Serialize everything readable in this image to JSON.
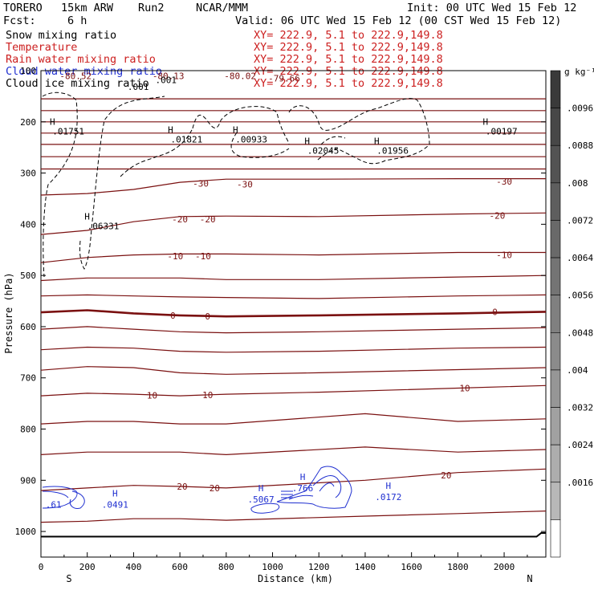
{
  "header": {
    "model": "TORERO",
    "resolution": "15km ARW",
    "run": "Run2",
    "org": "NCAR/MMM",
    "init": "Init: 00 UTC Wed 15 Feb 12",
    "fcst_label": "Fcst:",
    "fcst_value": "6 h",
    "valid": "Valid: 06 UTC Wed 15 Feb 12 (00 CST Wed 15 Feb 12)"
  },
  "colors": {
    "snow": "#000000",
    "temperature": "#7a1010",
    "rain": "#cc1f1f",
    "cloud_water": "#1f2fd0",
    "cloud_ice": "#000000",
    "xy_text": "#cc1f1f"
  },
  "legend": [
    {
      "name": "Snow mixing ratio",
      "xy": "XY= 222.9,  5.1 to 222.9,149.8",
      "color": "#000000"
    },
    {
      "name": "Temperature",
      "xy": "XY= 222.9,  5.1 to 222.9,149.8",
      "color": "#cc1f1f"
    },
    {
      "name": "Rain water mixing ratio",
      "xy": "XY= 222.9,  5.1 to 222.9,149.8",
      "color": "#cc1f1f"
    },
    {
      "name": "Cloud water mixing ratio",
      "xy": "XY= 222.9,  5.1 to 222.9,149.8",
      "color": "#1f2fd0"
    },
    {
      "name": "Cloud ice mixing ratio",
      "xy": "XY= 222.9,  5.1 to 222.9,149.8",
      "color": "#000000"
    }
  ],
  "chart_data": {
    "type": "line",
    "xlabel": "Distance (km)",
    "ylabel": "Pressure (hPa)",
    "xlim": [
      0,
      2180
    ],
    "ylim": [
      1050,
      100
    ],
    "x_ticks": [
      0,
      200,
      400,
      600,
      800,
      1000,
      1200,
      1400,
      1600,
      1800,
      2000
    ],
    "y_ticks": [
      200,
      300,
      400,
      500,
      600,
      700,
      800,
      900,
      1000
    ],
    "south_label": "S",
    "north_label": "N",
    "colorbar_unit": "g kg⁻¹",
    "colorbar_labels": [
      ".0096",
      ".0088",
      ".008",
      ".0072",
      ".0064",
      ".0056",
      ".0048",
      ".004",
      ".0032",
      ".0024",
      ".0016"
    ],
    "temperature_isotherms": [
      {
        "label": "",
        "p": [
          155,
          155,
          155,
          155,
          155,
          155,
          155
        ],
        "x": [
          0,
          400,
          800,
          1200,
          1600,
          2000,
          2180
        ]
      },
      {
        "label": "",
        "p": [
          178,
          178,
          178,
          178,
          178,
          178,
          178
        ],
        "x": [
          0,
          400,
          800,
          1200,
          1600,
          2000,
          2180
        ]
      },
      {
        "label": "",
        "p": [
          200,
          200,
          200,
          200,
          200,
          200,
          200
        ],
        "x": [
          0,
          400,
          800,
          1200,
          1600,
          2000,
          2180
        ]
      },
      {
        "label": "",
        "p": [
          222,
          222,
          222,
          222,
          222,
          222,
          222
        ],
        "x": [
          0,
          400,
          800,
          1200,
          1600,
          2000,
          2180
        ]
      },
      {
        "label": "",
        "p": [
          244,
          244,
          244,
          244,
          244,
          244,
          244
        ],
        "x": [
          0,
          400,
          800,
          1200,
          1600,
          2000,
          2180
        ]
      },
      {
        "label": "",
        "p": [
          268,
          268,
          268,
          268,
          268,
          268,
          268
        ],
        "x": [
          0,
          400,
          800,
          1200,
          1600,
          2000,
          2180
        ]
      },
      {
        "label": "",
        "p": [
          292,
          292,
          292,
          292,
          292,
          292,
          292
        ],
        "x": [
          0,
          400,
          800,
          1200,
          1600,
          2000,
          2180
        ]
      },
      {
        "label": "-30",
        "p": [
          343,
          340,
          332,
          318,
          312,
          312,
          311,
          311
        ],
        "x": [
          0,
          200,
          400,
          600,
          800,
          1200,
          1800,
          2180
        ]
      },
      {
        "label": "-20",
        "p": [
          420,
          412,
          395,
          385,
          384,
          385,
          380,
          378
        ],
        "x": [
          0,
          200,
          400,
          600,
          800,
          1200,
          1800,
          2180
        ]
      },
      {
        "label": "-10",
        "p": [
          475,
          465,
          460,
          458,
          458,
          460,
          455,
          455
        ],
        "x": [
          0,
          200,
          400,
          600,
          800,
          1200,
          1800,
          2180
        ]
      },
      {
        "label": "",
        "p": [
          510,
          505,
          505,
          505,
          508,
          508,
          503,
          500
        ],
        "x": [
          0,
          200,
          400,
          600,
          800,
          1200,
          1800,
          2180
        ]
      },
      {
        "label": "",
        "p": [
          540,
          538,
          540,
          542,
          543,
          545,
          540,
          538
        ],
        "x": [
          0,
          200,
          400,
          600,
          800,
          1200,
          1800,
          2180
        ]
      },
      {
        "label": "0",
        "p": [
          572,
          568,
          574,
          578,
          580,
          578,
          574,
          571
        ],
        "x": [
          0,
          200,
          400,
          600,
          800,
          1200,
          1800,
          2180
        ]
      },
      {
        "label": "",
        "p": [
          605,
          600,
          605,
          610,
          612,
          610,
          605,
          602
        ],
        "x": [
          0,
          200,
          400,
          600,
          800,
          1200,
          1800,
          2180
        ]
      },
      {
        "label": "",
        "p": [
          645,
          640,
          642,
          648,
          650,
          648,
          642,
          640
        ],
        "x": [
          0,
          200,
          400,
          600,
          800,
          1200,
          1800,
          2180
        ]
      },
      {
        "label": "",
        "p": [
          685,
          678,
          680,
          690,
          693,
          690,
          684,
          680
        ],
        "x": [
          0,
          200,
          400,
          600,
          800,
          1200,
          1800,
          2180
        ]
      },
      {
        "label": "10",
        "p": [
          735,
          730,
          732,
          735,
          732,
          728,
          720,
          715
        ],
        "x": [
          0,
          200,
          400,
          600,
          800,
          1200,
          1800,
          2180
        ]
      },
      {
        "label": "",
        "p": [
          790,
          785,
          785,
          790,
          790,
          770,
          785,
          780
        ],
        "x": [
          0,
          200,
          400,
          600,
          800,
          1400,
          1800,
          2180
        ]
      },
      {
        "label": "",
        "p": [
          850,
          845,
          845,
          845,
          850,
          835,
          845,
          840
        ],
        "x": [
          0,
          200,
          400,
          600,
          800,
          1400,
          1800,
          2180
        ]
      },
      {
        "label": "20",
        "p": [
          920,
          915,
          910,
          912,
          915,
          900,
          885,
          878
        ],
        "x": [
          0,
          200,
          400,
          600,
          800,
          1400,
          1800,
          2180
        ]
      },
      {
        "label": "",
        "p": [
          982,
          980,
          975,
          975,
          978,
          970,
          965,
          960
        ],
        "x": [
          0,
          200,
          400,
          600,
          800,
          1400,
          1800,
          2180
        ]
      }
    ],
    "temperature_labels": [
      {
        "text": "-80.52",
        "x": 150,
        "p": 110
      },
      {
        "text": "-80.13",
        "x": 550,
        "p": 110
      },
      {
        "text": "-80.02",
        "x": 860,
        "p": 110
      },
      {
        "text": "-79.66",
        "x": 1050,
        "p": 115
      },
      {
        "text": "-30",
        "x": 690,
        "p": 320
      },
      {
        "text": "-30",
        "x": 880,
        "p": 322
      },
      {
        "text": "-30",
        "x": 2000,
        "p": 316
      },
      {
        "text": "-20",
        "x": 600,
        "p": 390
      },
      {
        "text": "-20",
        "x": 720,
        "p": 390
      },
      {
        "text": "-20",
        "x": 1970,
        "p": 383
      },
      {
        "text": "-10",
        "x": 580,
        "p": 462
      },
      {
        "text": "-10",
        "x": 700,
        "p": 462
      },
      {
        "text": "-10",
        "x": 2000,
        "p": 460
      },
      {
        "text": "0",
        "x": 570,
        "p": 578
      },
      {
        "text": "0",
        "x": 720,
        "p": 580
      },
      {
        "text": "0",
        "x": 1960,
        "p": 571
      },
      {
        "text": "10",
        "x": 480,
        "p": 734
      },
      {
        "text": "10",
        "x": 720,
        "p": 733
      },
      {
        "text": "10",
        "x": 1830,
        "p": 720
      },
      {
        "text": "20",
        "x": 610,
        "p": 912
      },
      {
        "text": "20",
        "x": 750,
        "p": 915
      },
      {
        "text": "20",
        "x": 1750,
        "p": 890
      }
    ],
    "cloud_ice_maxima": [
      {
        "text": ".01751",
        "x": 60,
        "p": 225
      },
      {
        "text": ".01821",
        "x": 570,
        "p": 240
      },
      {
        "text": ".00933",
        "x": 850,
        "p": 240
      },
      {
        "text": ".02045",
        "x": 1160,
        "p": 262
      },
      {
        "text": ".01956",
        "x": 1460,
        "p": 262
      },
      {
        "text": ".00197",
        "x": 1930,
        "p": 225
      },
      {
        "text": ".06331",
        "x": 210,
        "p": 410
      }
    ],
    "snow_contour_labels": [
      {
        "text": ".001",
        "x": 420,
        "p": 138
      },
      {
        "text": ".001",
        "x": 540,
        "p": 124
      }
    ],
    "cloud_water_maxima": [
      {
        "text": ".0491",
        "x": 320,
        "p": 960
      },
      {
        "text": ".5067",
        "x": 950,
        "p": 950
      },
      {
        "text": ".766",
        "x": 1130,
        "p": 928
      },
      {
        "text": ".0172",
        "x": 1500,
        "p": 945
      },
      {
        "text": ".61",
        "x": 20,
        "p": 960
      }
    ]
  }
}
